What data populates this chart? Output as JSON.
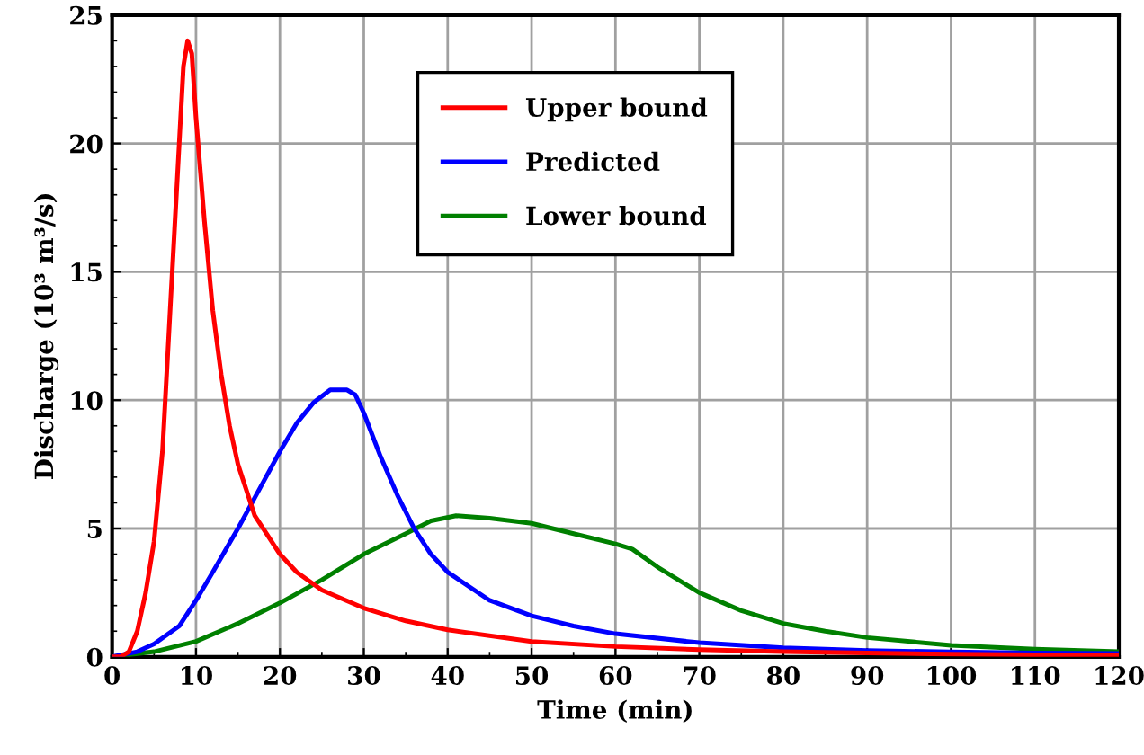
{
  "chart_data": {
    "type": "line",
    "xlabel": "Time (min)",
    "ylabel": "Discharge (10³ m³/s)",
    "xlim": [
      0,
      120
    ],
    "xticks": [
      0,
      10,
      20,
      30,
      40,
      50,
      60,
      70,
      80,
      90,
      100,
      110,
      120
    ],
    "ylim": [
      0,
      25
    ],
    "yticks": [
      0,
      5,
      10,
      15,
      20,
      25
    ],
    "grid": true,
    "legend": "top",
    "marker": "none",
    "line_style": "solid",
    "series": [
      {
        "name": "Upper bound",
        "color": "#ff0000",
        "x": [
          0,
          1,
          2,
          3,
          4,
          5,
          6,
          7,
          8,
          8.5,
          9,
          9.5,
          10,
          11,
          12,
          13,
          14,
          15,
          17,
          20,
          22,
          25,
          30,
          35,
          40,
          50,
          60,
          70,
          80,
          90,
          100,
          110,
          120
        ],
        "values": [
          0,
          0,
          0.2,
          1,
          2.5,
          4.5,
          8,
          14,
          20,
          23,
          24,
          23.5,
          21,
          17,
          13.5,
          11,
          9,
          7.5,
          5.5,
          4,
          3.3,
          2.6,
          1.9,
          1.4,
          1.05,
          0.6,
          0.4,
          0.28,
          0.2,
          0.15,
          0.11,
          0.08,
          0.06
        ]
      },
      {
        "name": "Predicted",
        "color": "#0000ff",
        "x": [
          0,
          3,
          5,
          8,
          10,
          12,
          15,
          18,
          20,
          22,
          24,
          26,
          28,
          29,
          30,
          32,
          34,
          36,
          38,
          40,
          45,
          50,
          55,
          60,
          70,
          80,
          90,
          100,
          110,
          120
        ],
        "values": [
          0,
          0.2,
          0.5,
          1.2,
          2.2,
          3.3,
          5,
          6.8,
          8,
          9.1,
          9.9,
          10.4,
          10.4,
          10.2,
          9.5,
          7.8,
          6.3,
          5,
          4,
          3.3,
          2.2,
          1.6,
          1.2,
          0.9,
          0.55,
          0.35,
          0.25,
          0.19,
          0.15,
          0.13
        ]
      },
      {
        "name": "Lower bound",
        "color": "#008000",
        "x": [
          0,
          5,
          10,
          15,
          20,
          25,
          30,
          35,
          38,
          41,
          45,
          50,
          55,
          60,
          62,
          65,
          70,
          75,
          80,
          85,
          90,
          100,
          110,
          120
        ],
        "values": [
          0,
          0.2,
          0.6,
          1.3,
          2.1,
          3,
          4,
          4.8,
          5.3,
          5.5,
          5.4,
          5.2,
          4.8,
          4.4,
          4.2,
          3.5,
          2.5,
          1.8,
          1.3,
          1,
          0.75,
          0.45,
          0.3,
          0.2
        ]
      }
    ]
  }
}
